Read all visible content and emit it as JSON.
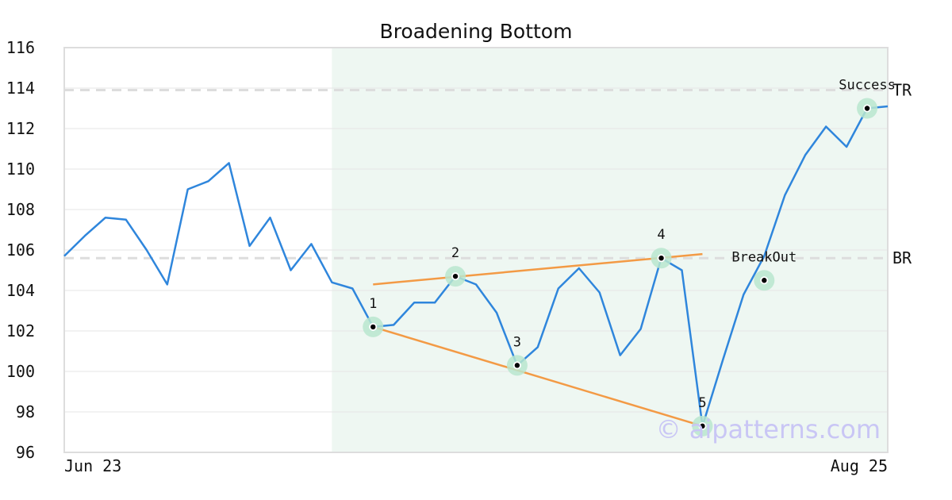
{
  "chart_data": {
    "type": "line",
    "title": "Broadening Bottom",
    "ylim": [
      96,
      116
    ],
    "yticks": [
      96,
      98,
      100,
      102,
      104,
      106,
      108,
      110,
      112,
      114,
      116
    ],
    "xlim": [
      0,
      40
    ],
    "x_tick_labels": [
      {
        "x": 0,
        "label": "Jun 23"
      },
      {
        "x": 40,
        "label": "Aug 25"
      }
    ],
    "grid": true,
    "series": [
      {
        "color": "#2f86dc",
        "x": [
          0,
          1,
          2,
          3,
          4,
          5,
          6,
          7,
          8,
          9,
          10,
          11,
          12,
          13,
          14,
          15,
          16,
          17,
          18,
          19,
          20,
          21,
          22,
          23,
          24,
          25,
          26,
          27,
          28,
          29,
          30,
          31,
          32,
          33,
          34,
          35,
          36,
          37,
          38,
          39,
          40
        ],
        "values": [
          105.7,
          106.7,
          107.6,
          107.5,
          106.0,
          104.3,
          109.0,
          109.4,
          110.3,
          106.2,
          107.6,
          105.0,
          106.3,
          104.4,
          104.1,
          102.2,
          102.3,
          103.4,
          103.4,
          104.7,
          104.3,
          102.9,
          100.3,
          101.2,
          104.1,
          105.1,
          103.9,
          100.8,
          102.1,
          105.6,
          105.0,
          97.3,
          100.6,
          103.8,
          105.7,
          108.7,
          110.7,
          112.1,
          111.1,
          113.0,
          113.1
        ]
      }
    ],
    "highlight_region": {
      "x_start": 13,
      "x_end": 40,
      "color": "#eef7f2"
    },
    "levels": [
      {
        "label": "TR",
        "y": 113.9,
        "color": "#dddddd"
      },
      {
        "label": "BR",
        "y": 105.6,
        "color": "#dddddd"
      }
    ],
    "trendlines": [
      {
        "x": [
          15,
          31
        ],
        "y": [
          104.3,
          105.8
        ],
        "color": "#f39a45"
      },
      {
        "x": [
          15,
          31
        ],
        "y": [
          102.2,
          97.3
        ],
        "color": "#f39a45"
      }
    ],
    "points": [
      {
        "label": "1",
        "x": 15,
        "y": 102.2
      },
      {
        "label": "2",
        "x": 19,
        "y": 104.7
      },
      {
        "label": "3",
        "x": 22,
        "y": 100.3
      },
      {
        "label": "4",
        "x": 29,
        "y": 105.6
      },
      {
        "label": "5",
        "x": 31,
        "y": 97.3
      }
    ],
    "annotations": [
      {
        "label": "BreakOut",
        "x": 34,
        "y": 104.5
      },
      {
        "label": "Success",
        "x": 39,
        "y": 113.0
      }
    ],
    "marker_color": "#b8e6cf",
    "watermark": "© aipatterns.com"
  }
}
